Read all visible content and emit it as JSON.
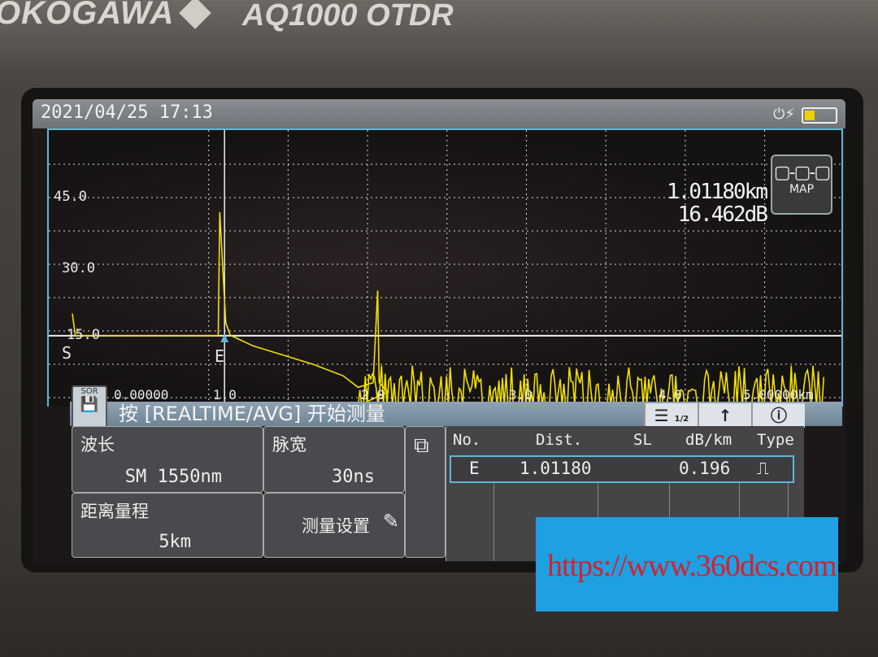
{
  "device": {
    "brand": "OKOGAWA",
    "model": "AQ1000 OTDR"
  },
  "status": {
    "datetime": "2021/04/25 17:13",
    "power_icon": "plug-icon",
    "battery_level": 0.3
  },
  "cursor_readout": {
    "distance": "1.01180km",
    "loss": "16.462dB"
  },
  "map_button": {
    "label": "MAP"
  },
  "y_ticks": [
    "45.0",
    "30.0",
    "15.0"
  ],
  "x_ticks": [
    "0.00000",
    "1.0",
    "2.0",
    "3.0",
    "4.0",
    "5.00000km"
  ],
  "markers": {
    "start": "S",
    "end": "E"
  },
  "message": "按 [REALTIME/AVG] 开始测量",
  "toolbar": {
    "page": "1/2",
    "save_label": "SOR"
  },
  "params": [
    {
      "label": "波长",
      "value": "SM 1550nm"
    },
    {
      "label": "脉宽",
      "value": "30ns"
    },
    {
      "label": "距离量程",
      "value": "5km"
    },
    {
      "label": "测量设置",
      "value": ""
    }
  ],
  "events_table": {
    "headers": [
      "No.",
      "Dist.",
      "SL",
      "dB/km",
      "Type"
    ],
    "rows": [
      {
        "no": "E",
        "dist": "1.01180",
        "sl": "",
        "dbkm": "0.196",
        "type": "end-event-icon"
      }
    ]
  },
  "watermark": "https://www.360dcs.com",
  "colors": {
    "trace": "#f0e000",
    "frame": "#5fb7d8"
  },
  "chart_data": {
    "type": "line",
    "xlim": [
      0,
      5
    ],
    "ylim": [
      0,
      52
    ],
    "x_unit": "km",
    "y_unit": "dB",
    "grid": true,
    "trace": [
      [
        0,
        20
      ],
      [
        0.02,
        15.2
      ],
      [
        0.97,
        15.2
      ],
      [
        0.98,
        42
      ],
      [
        1.0,
        30
      ],
      [
        1.02,
        18
      ],
      [
        1.05,
        15.3
      ],
      [
        1.2,
        13
      ],
      [
        1.4,
        11
      ],
      [
        1.6,
        9
      ],
      [
        1.8,
        6.5
      ],
      [
        1.9,
        4
      ],
      [
        2.0,
        5
      ],
      [
        2.03,
        25
      ],
      [
        2.04,
        5
      ],
      [
        2.1,
        3
      ]
    ],
    "noise_band_db": [
      0,
      9
    ],
    "noise_range_km": [
      1.9,
      5.0
    ],
    "cursor_km": 1.0118
  }
}
